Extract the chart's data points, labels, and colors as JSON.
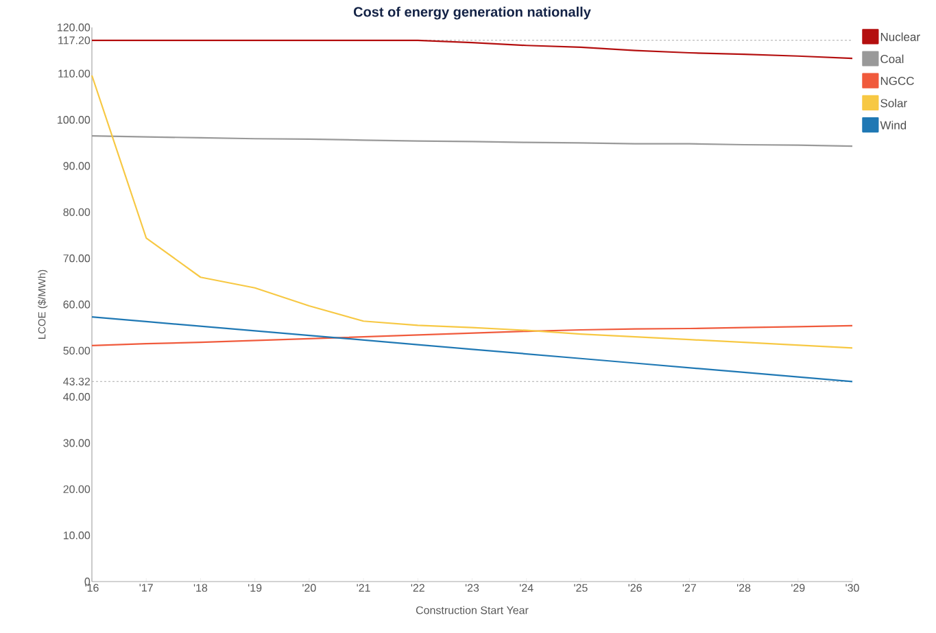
{
  "chart_data": {
    "type": "line",
    "title": "Cost of energy generation nationally",
    "xlabel": "Construction Start Year",
    "ylabel": "LCOE ($/MWh)",
    "categories": [
      "'16",
      "'17",
      "'18",
      "'19",
      "'20",
      "'21",
      "'22",
      "'23",
      "'24",
      "'25",
      "'26",
      "'27",
      "'28",
      "'29",
      "'30"
    ],
    "series": [
      {
        "name": "Nuclear",
        "color": "#b40f0f",
        "values": [
          117.2,
          117.2,
          117.2,
          117.2,
          117.2,
          117.2,
          117.2,
          116.7,
          116.1,
          115.7,
          115.0,
          114.5,
          114.2,
          113.8,
          113.3
        ]
      },
      {
        "name": "Coal",
        "color": "#999999",
        "values": [
          96.5,
          96.3,
          96.1,
          95.9,
          95.8,
          95.6,
          95.4,
          95.3,
          95.1,
          95.0,
          94.8,
          94.8,
          94.6,
          94.5,
          94.3
        ]
      },
      {
        "name": "NGCC",
        "color": "#f05a3c",
        "values": [
          51.1,
          51.5,
          51.8,
          52.2,
          52.6,
          53.0,
          53.4,
          53.8,
          54.2,
          54.5,
          54.7,
          54.8,
          55.0,
          55.2,
          55.4
        ]
      },
      {
        "name": "Solar",
        "color": "#f7c843",
        "values": [
          109.6,
          74.4,
          65.9,
          63.6,
          59.7,
          56.4,
          55.5,
          55.0,
          54.4,
          53.6,
          53.0,
          52.4,
          51.8,
          51.2,
          50.6
        ]
      },
      {
        "name": "Wind",
        "color": "#1f78b4",
        "values": [
          57.3,
          56.3,
          55.3,
          54.3,
          53.3,
          52.3,
          51.3,
          50.3,
          49.3,
          48.3,
          47.3,
          46.3,
          45.3,
          44.3,
          43.32
        ]
      }
    ],
    "ylim": [
      0,
      120
    ],
    "yticks": [
      {
        "value": 0,
        "label": "0"
      },
      {
        "value": 10,
        "label": "10.00"
      },
      {
        "value": 20,
        "label": "20.00"
      },
      {
        "value": 30,
        "label": "30.00"
      },
      {
        "value": 40,
        "label": "40.00"
      },
      {
        "value": 43.32,
        "label": "43.32"
      },
      {
        "value": 50,
        "label": "50.00"
      },
      {
        "value": 60,
        "label": "60.00"
      },
      {
        "value": 70,
        "label": "70.00"
      },
      {
        "value": 80,
        "label": "80.00"
      },
      {
        "value": 90,
        "label": "90.00"
      },
      {
        "value": 100,
        "label": "100.00"
      },
      {
        "value": 110,
        "label": "110.00"
      },
      {
        "value": 117.2,
        "label": "117.20"
      },
      {
        "value": 120,
        "label": "120.00"
      }
    ],
    "ref_lines": [
      {
        "axis": "y",
        "value": 117.2,
        "color": "#aaaaaa",
        "line_style": "dashed"
      },
      {
        "axis": "y",
        "value": 43.32,
        "color": "#aaaaaa",
        "line_style": "dashed"
      }
    ],
    "grid": false,
    "legend": "top right",
    "marker": "none",
    "line_style": "solid"
  }
}
